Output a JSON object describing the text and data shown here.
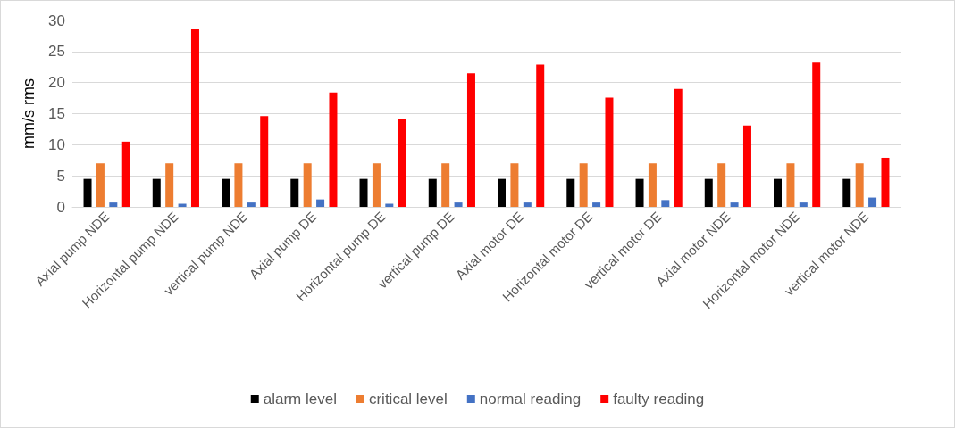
{
  "chart_data": {
    "type": "bar",
    "ylabel": "mm/s rms",
    "categories": [
      "Axial pump NDE",
      "Horizontal pump NDE",
      "vertical pump NDE",
      "Axial pump DE",
      "Horizontal pump DE",
      "vertical pump DE",
      "Axial motor DE",
      "Horizontal motor DE",
      "vertical motor DE",
      "Axial motor NDE",
      "Horizontal motor NDE",
      "vertical motor NDE"
    ],
    "series": [
      {
        "name": "alarm level",
        "color": "#000000",
        "values": [
          4.5,
          4.5,
          4.5,
          4.5,
          4.5,
          4.5,
          4.5,
          4.5,
          4.5,
          4.5,
          4.5,
          4.5
        ]
      },
      {
        "name": "critical level",
        "color": "#ed7d31",
        "values": [
          7,
          7,
          7,
          7,
          7,
          7,
          7,
          7,
          7,
          7,
          7,
          7
        ]
      },
      {
        "name": "normal reading",
        "color": "#4472c4",
        "values": [
          0.7,
          0.5,
          0.7,
          1.2,
          0.5,
          0.7,
          0.7,
          0.7,
          1.1,
          0.7,
          0.7,
          1.5
        ]
      },
      {
        "name": "faulty reading",
        "color": "#ff0000",
        "values": [
          10.5,
          28.6,
          14.6,
          18.4,
          14.1,
          21.5,
          22.9,
          17.6,
          19,
          13.1,
          23.2,
          7.9
        ]
      }
    ],
    "ylim": [
      0,
      30
    ],
    "yticks": [
      0,
      5,
      10,
      15,
      20,
      25,
      30
    ],
    "grid": "y",
    "legend": "bottom"
  }
}
